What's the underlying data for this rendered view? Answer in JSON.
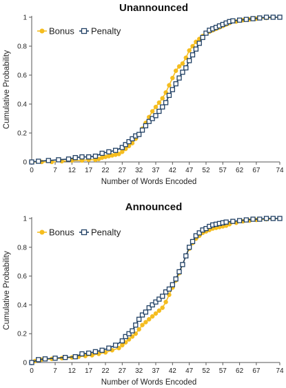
{
  "chart_data": [
    {
      "type": "line",
      "title": "Unannounced",
      "xlabel": "Number of Words Encoded",
      "ylabel": "Cumulative Probability",
      "xlim": [
        0,
        74
      ],
      "ylim": [
        0,
        1
      ],
      "x_ticks": [
        "0",
        "7",
        "12",
        "17",
        "22",
        "27",
        "32",
        "37",
        "42",
        "47",
        "52",
        "57",
        "62",
        "67",
        "74"
      ],
      "y_ticks": [
        "0",
        "0.2",
        "0.4",
        "0.6",
        "0.8",
        "1"
      ],
      "grid": false,
      "legend_position": "top-left",
      "series": [
        {
          "name": "Bonus",
          "color": "#f5bd1f",
          "marker": "circle",
          "points": [
            [
              0,
              0
            ],
            [
              3,
              0
            ],
            [
              6,
              0
            ],
            [
              9,
              0.005
            ],
            [
              12,
              0.01
            ],
            [
              15,
              0.01
            ],
            [
              17,
              0.015
            ],
            [
              19,
              0.015
            ],
            [
              20,
              0.02
            ],
            [
              21,
              0.03
            ],
            [
              22,
              0.035
            ],
            [
              23,
              0.04
            ],
            [
              24,
              0.045
            ],
            [
              25,
              0.05
            ],
            [
              26,
              0.055
            ],
            [
              27,
              0.07
            ],
            [
              28,
              0.09
            ],
            [
              29,
              0.11
            ],
            [
              30,
              0.13
            ],
            [
              31,
              0.16
            ],
            [
              32,
              0.19
            ],
            [
              33,
              0.23
            ],
            [
              34,
              0.27
            ],
            [
              35,
              0.31
            ],
            [
              36,
              0.35
            ],
            [
              37,
              0.38
            ],
            [
              38,
              0.41
            ],
            [
              39,
              0.44
            ],
            [
              40,
              0.48
            ],
            [
              41,
              0.53
            ],
            [
              42,
              0.58
            ],
            [
              43,
              0.63
            ],
            [
              44,
              0.66
            ],
            [
              45,
              0.68
            ],
            [
              46,
              0.72
            ],
            [
              47,
              0.77
            ],
            [
              48,
              0.8
            ],
            [
              49,
              0.83
            ],
            [
              50,
              0.85
            ],
            [
              51,
              0.87
            ],
            [
              52,
              0.89
            ],
            [
              53,
              0.9
            ],
            [
              54,
              0.91
            ],
            [
              55,
              0.92
            ],
            [
              56,
              0.93
            ],
            [
              57,
              0.94
            ],
            [
              58,
              0.95
            ],
            [
              59,
              0.96
            ],
            [
              61,
              0.97
            ],
            [
              63,
              0.98
            ],
            [
              65,
              0.985
            ],
            [
              67,
              0.99
            ],
            [
              70,
              0.995
            ],
            [
              74,
              1
            ]
          ]
        },
        {
          "name": "Penalty",
          "color": "#1f3f63",
          "marker": "square",
          "points": [
            [
              0,
              0
            ],
            [
              2,
              0.005
            ],
            [
              5,
              0.01
            ],
            [
              8,
              0.015
            ],
            [
              11,
              0.02
            ],
            [
              13,
              0.03
            ],
            [
              15,
              0.035
            ],
            [
              17,
              0.035
            ],
            [
              19,
              0.04
            ],
            [
              21,
              0.06
            ],
            [
              23,
              0.07
            ],
            [
              25,
              0.08
            ],
            [
              27,
              0.1
            ],
            [
              28,
              0.12
            ],
            [
              29,
              0.14
            ],
            [
              30,
              0.16
            ],
            [
              31,
              0.18
            ],
            [
              32,
              0.19
            ],
            [
              33,
              0.22
            ],
            [
              34,
              0.25
            ],
            [
              35,
              0.28
            ],
            [
              36,
              0.3
            ],
            [
              37,
              0.32
            ],
            [
              38,
              0.35
            ],
            [
              39,
              0.38
            ],
            [
              40,
              0.41
            ],
            [
              41,
              0.46
            ],
            [
              42,
              0.5
            ],
            [
              43,
              0.54
            ],
            [
              44,
              0.58
            ],
            [
              45,
              0.62
            ],
            [
              46,
              0.65
            ],
            [
              47,
              0.7
            ],
            [
              48,
              0.74
            ],
            [
              49,
              0.78
            ],
            [
              50,
              0.82
            ],
            [
              51,
              0.86
            ],
            [
              52,
              0.89
            ],
            [
              53,
              0.91
            ],
            [
              54,
              0.92
            ],
            [
              55,
              0.93
            ],
            [
              56,
              0.94
            ],
            [
              57,
              0.95
            ],
            [
              58,
              0.96
            ],
            [
              59,
              0.97
            ],
            [
              60,
              0.975
            ],
            [
              62,
              0.98
            ],
            [
              64,
              0.985
            ],
            [
              66,
              0.99
            ],
            [
              68,
              0.995
            ],
            [
              70,
              1
            ],
            [
              72,
              1
            ],
            [
              74,
              1
            ]
          ]
        }
      ]
    },
    {
      "type": "line",
      "title": "Announced",
      "xlabel": "Number of Words Encoded",
      "ylabel": "Cumulative Probability",
      "xlim": [
        0,
        74
      ],
      "ylim": [
        0,
        1
      ],
      "x_ticks": [
        "0",
        "7",
        "12",
        "17",
        "22",
        "27",
        "32",
        "37",
        "42",
        "47",
        "52",
        "57",
        "62",
        "67",
        "74"
      ],
      "y_ticks": [
        "0",
        "0.2",
        "0.4",
        "0.6",
        "0.8",
        "1"
      ],
      "grid": false,
      "legend_position": "top-left",
      "series": [
        {
          "name": "Bonus",
          "color": "#f5bd1f",
          "marker": "circle",
          "points": [
            [
              0,
              0
            ],
            [
              1,
              0.01
            ],
            [
              3,
              0.02
            ],
            [
              6,
              0.025
            ],
            [
              9,
              0.03
            ],
            [
              12,
              0.035
            ],
            [
              14,
              0.04
            ],
            [
              16,
              0.045
            ],
            [
              18,
              0.05
            ],
            [
              20,
              0.06
            ],
            [
              22,
              0.07
            ],
            [
              24,
              0.085
            ],
            [
              26,
              0.1
            ],
            [
              27,
              0.12
            ],
            [
              28,
              0.14
            ],
            [
              29,
              0.16
            ],
            [
              30,
              0.18
            ],
            [
              31,
              0.2
            ],
            [
              32,
              0.23
            ],
            [
              33,
              0.26
            ],
            [
              34,
              0.28
            ],
            [
              35,
              0.3
            ],
            [
              36,
              0.32
            ],
            [
              37,
              0.34
            ],
            [
              38,
              0.36
            ],
            [
              39,
              0.38
            ],
            [
              40,
              0.42
            ],
            [
              41,
              0.47
            ],
            [
              42,
              0.52
            ],
            [
              43,
              0.57
            ],
            [
              44,
              0.62
            ],
            [
              45,
              0.68
            ],
            [
              46,
              0.74
            ],
            [
              47,
              0.79
            ],
            [
              48,
              0.83
            ],
            [
              49,
              0.86
            ],
            [
              50,
              0.88
            ],
            [
              51,
              0.9
            ],
            [
              52,
              0.91
            ],
            [
              53,
              0.92
            ],
            [
              54,
              0.93
            ],
            [
              55,
              0.935
            ],
            [
              56,
              0.94
            ],
            [
              57,
              0.945
            ],
            [
              58,
              0.95
            ],
            [
              59,
              0.96
            ],
            [
              61,
              0.97
            ],
            [
              63,
              0.98
            ],
            [
              65,
              0.985
            ],
            [
              67,
              0.99
            ],
            [
              70,
              0.995
            ],
            [
              74,
              1
            ]
          ]
        },
        {
          "name": "Penalty",
          "color": "#1f3f63",
          "marker": "square",
          "points": [
            [
              0,
              0
            ],
            [
              2,
              0.02
            ],
            [
              4,
              0.025
            ],
            [
              7,
              0.03
            ],
            [
              10,
              0.035
            ],
            [
              13,
              0.04
            ],
            [
              15,
              0.06
            ],
            [
              17,
              0.065
            ],
            [
              19,
              0.075
            ],
            [
              21,
              0.085
            ],
            [
              23,
              0.1
            ],
            [
              25,
              0.12
            ],
            [
              27,
              0.15
            ],
            [
              28,
              0.18
            ],
            [
              29,
              0.2
            ],
            [
              30,
              0.22
            ],
            [
              31,
              0.26
            ],
            [
              32,
              0.3
            ],
            [
              33,
              0.33
            ],
            [
              34,
              0.35
            ],
            [
              35,
              0.38
            ],
            [
              36,
              0.4
            ],
            [
              37,
              0.42
            ],
            [
              38,
              0.44
            ],
            [
              39,
              0.46
            ],
            [
              40,
              0.49
            ],
            [
              41,
              0.51
            ],
            [
              42,
              0.54
            ],
            [
              43,
              0.58
            ],
            [
              44,
              0.63
            ],
            [
              45,
              0.68
            ],
            [
              46,
              0.74
            ],
            [
              47,
              0.8
            ],
            [
              48,
              0.84
            ],
            [
              49,
              0.88
            ],
            [
              50,
              0.9
            ],
            [
              51,
              0.92
            ],
            [
              52,
              0.93
            ],
            [
              53,
              0.945
            ],
            [
              54,
              0.955
            ],
            [
              55,
              0.96
            ],
            [
              56,
              0.965
            ],
            [
              57,
              0.97
            ],
            [
              58,
              0.975
            ],
            [
              60,
              0.98
            ],
            [
              62,
              0.985
            ],
            [
              64,
              0.99
            ],
            [
              66,
              0.995
            ],
            [
              68,
              0.995
            ],
            [
              70,
              1
            ],
            [
              72,
              1
            ],
            [
              74,
              1
            ]
          ]
        }
      ]
    }
  ]
}
